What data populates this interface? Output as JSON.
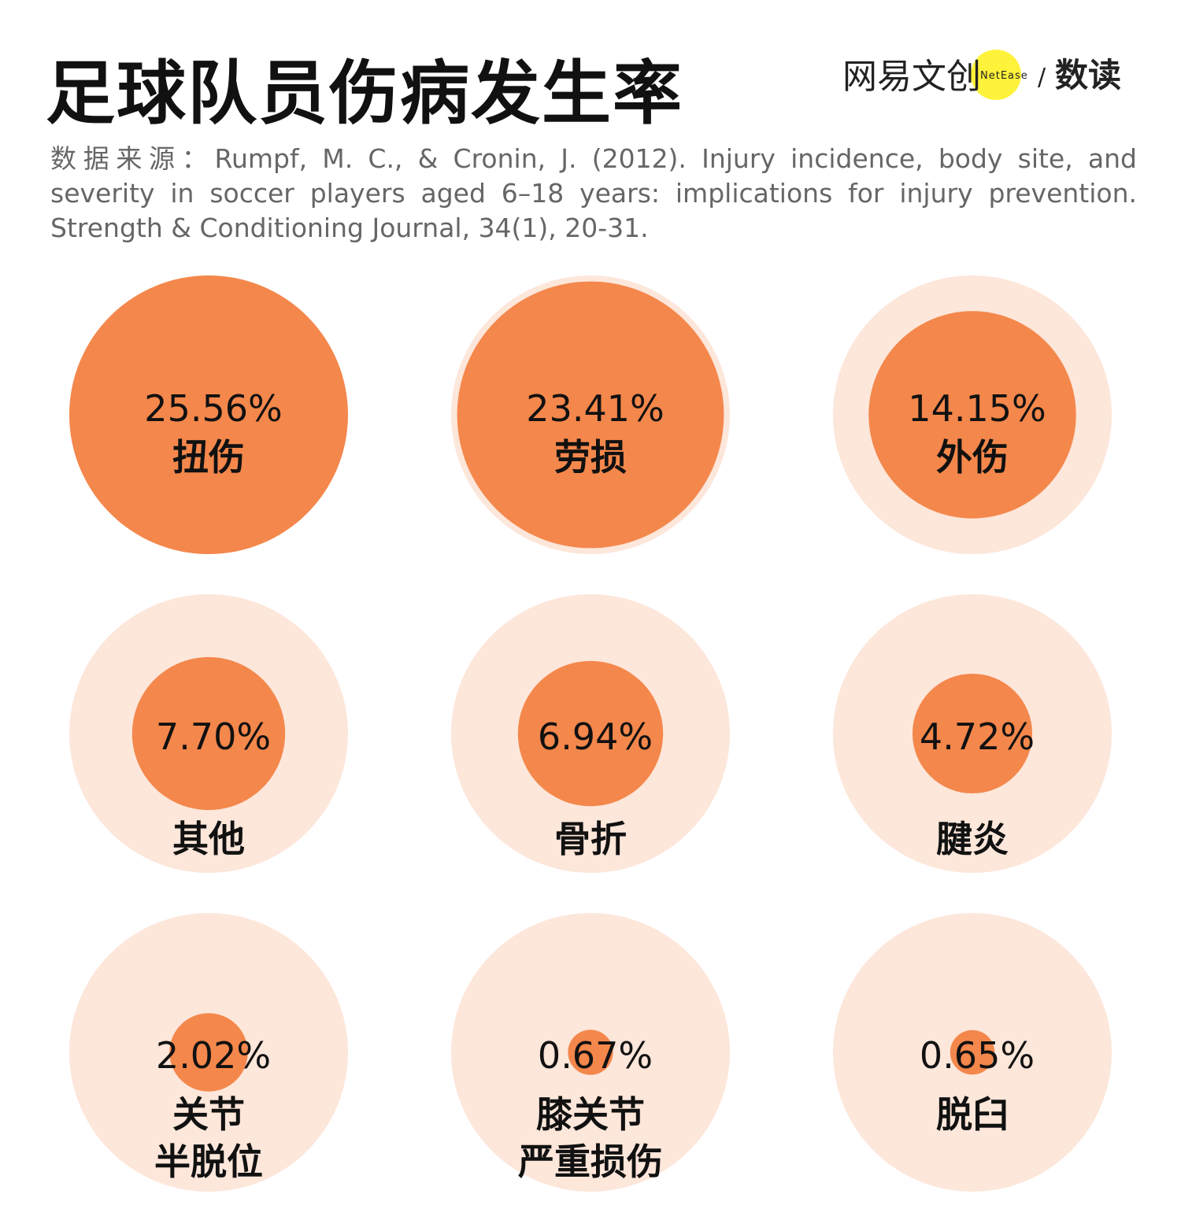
{
  "title": "足球队员伤病发生率",
  "source": "数据来源：Rumpf, M. C., & Cronin, J. (2012). Injury incidence, body site, and severity in soccer players aged 6–18 years: implications for injury prevention. Strength & Conditioning Journal, 34(1), 20-31.",
  "logo": {
    "brand": "网易文创",
    "brand_en": "NetEase",
    "sub": "数读",
    "separator": "/"
  },
  "colors": {
    "value_circle": "#F4874B",
    "max_circle": "#FDE6DA",
    "logo_yellow": "#FFF23A"
  },
  "chart_data": {
    "type": "bubble",
    "title": "足球队员伤病发生率",
    "unit": "%",
    "categories": [
      [
        "扭伤"
      ],
      [
        "劳损"
      ],
      [
        "外伤"
      ],
      [
        "其他"
      ],
      [
        "骨折"
      ],
      [
        "腱炎"
      ],
      [
        "关节",
        "半脱位"
      ],
      [
        "膝关节",
        "严重损伤"
      ],
      [
        "脱臼"
      ]
    ],
    "values": [
      25.56,
      23.41,
      14.15,
      7.7,
      6.94,
      4.72,
      2.02,
      0.67,
      0.65
    ],
    "labels": [
      "25.56%",
      "23.41%",
      "14.15%",
      "7.70%",
      "6.94%",
      "4.72%",
      "2.02%",
      "0.67%",
      "0.65%"
    ],
    "max": 25.56,
    "layout": "3x3 grid"
  }
}
